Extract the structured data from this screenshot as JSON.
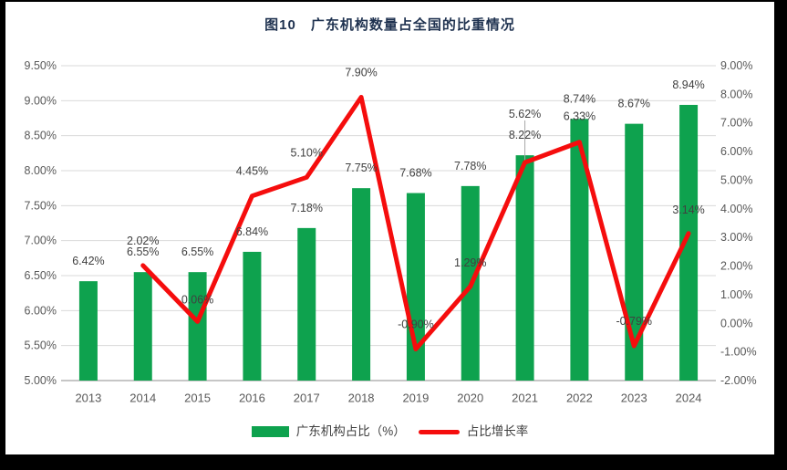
{
  "chart_data": {
    "type": "combo",
    "title": "图10　广东机构数量占全国的比重情况",
    "categories": [
      "2013",
      "2014",
      "2015",
      "2016",
      "2017",
      "2018",
      "2019",
      "2020",
      "2021",
      "2022",
      "2023",
      "2024"
    ],
    "series": [
      {
        "name": "广东机构占比（%）",
        "type": "bar",
        "axis": "left",
        "color": "#0EA24E",
        "values": [
          6.42,
          6.55,
          6.55,
          6.84,
          7.18,
          7.75,
          7.68,
          7.78,
          8.22,
          8.74,
          8.67,
          8.94
        ],
        "labels": [
          "6.42%",
          "6.55%",
          "6.55%",
          "6.84%",
          "7.18%",
          "7.75%",
          "7.68%",
          "7.78%",
          "8.22%",
          "8.74%",
          "8.67%",
          "8.94%"
        ]
      },
      {
        "name": "占比增长率",
        "type": "line",
        "axis": "right",
        "color": "#F50D0D",
        "values": [
          null,
          2.02,
          0.06,
          4.45,
          5.1,
          7.9,
          -0.9,
          1.29,
          5.62,
          6.33,
          -0.79,
          3.14
        ],
        "labels": [
          "",
          "2.02%",
          "0.06%",
          "4.45%",
          "5.10%",
          "7.90%",
          "-0.90%",
          "1.29%",
          "5.62%",
          "6.33%",
          "-0.79%",
          "3.14%"
        ],
        "label_dy": [
          null,
          -27,
          -24,
          -27,
          -27,
          -27,
          -27,
          -26,
          -53,
          -28,
          -27,
          -26
        ],
        "leader_line_index": 8
      }
    ],
    "left_axis": {
      "min": 5.0,
      "max": 9.5,
      "step": 0.5,
      "tick_labels": [
        "5.00%",
        "5.50%",
        "6.00%",
        "6.50%",
        "7.00%",
        "7.50%",
        "8.00%",
        "8.50%",
        "9.00%",
        "9.50%"
      ]
    },
    "right_axis": {
      "min": -2.0,
      "max": 9.0,
      "step": 1.0,
      "tick_labels": [
        "-2.00%",
        "-1.00%",
        "0.00%",
        "1.00%",
        "2.00%",
        "3.00%",
        "4.00%",
        "5.00%",
        "6.00%",
        "7.00%",
        "8.00%",
        "9.00%"
      ]
    },
    "grid": true,
    "legend_position": "bottom"
  },
  "colors": {
    "background": "#000000",
    "panel": "#ffffff",
    "gridline": "#D9D9D9",
    "axis_line": "#C6C6C6",
    "tick_label": "#595959",
    "data_label": "#404040",
    "title": "#1f3250",
    "leader_line": "#A6A6A6"
  }
}
